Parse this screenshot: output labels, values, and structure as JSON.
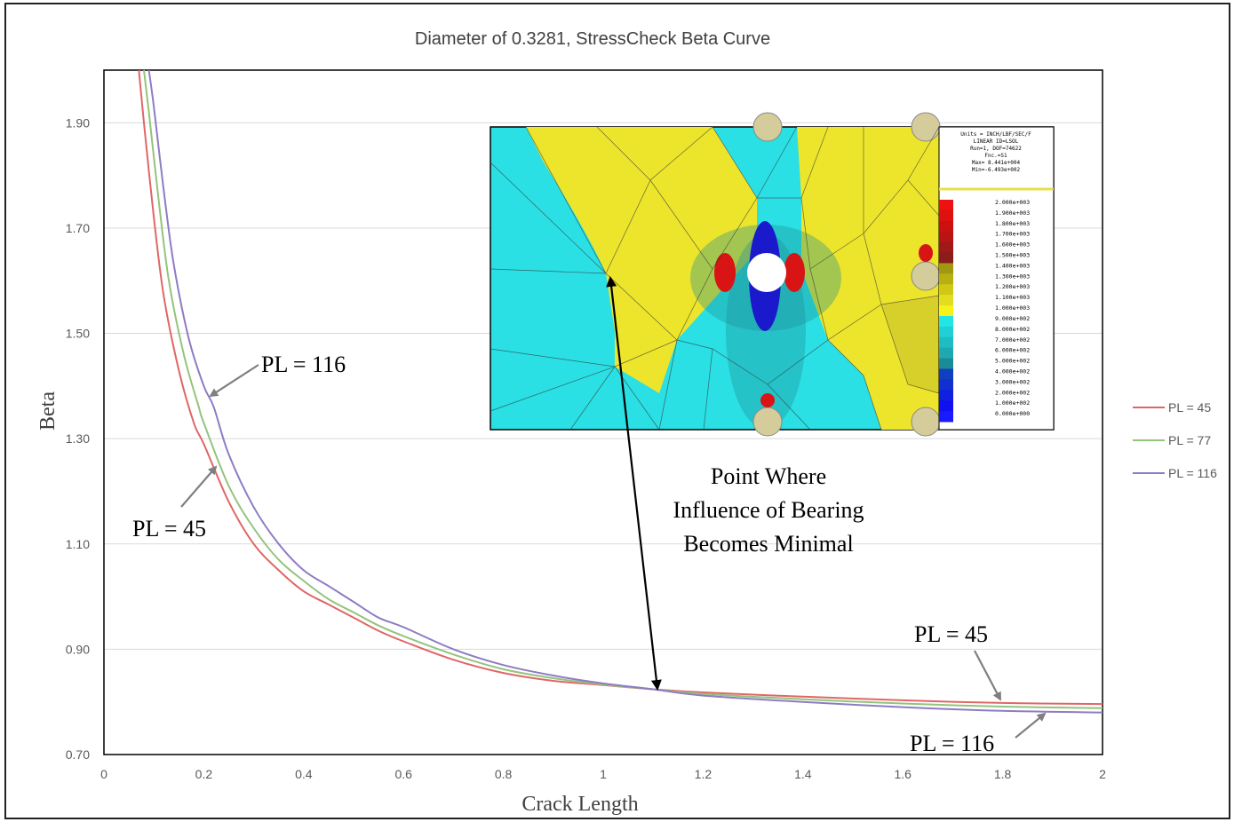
{
  "chart_data": {
    "type": "line",
    "title": "Diameter of 0.3281, StressCheck Beta Curve",
    "xlabel": "Crack Length",
    "ylabel": "Beta",
    "xlim": [
      0,
      2
    ],
    "ylim": [
      0.7,
      2.0
    ],
    "x_ticks": [
      "0",
      "0.2",
      "0.4",
      "0.6",
      "0.8",
      "1",
      "1.2",
      "1.4",
      "1.6",
      "1.8",
      "2"
    ],
    "y_ticks": [
      "0.70",
      "0.90",
      "1.10",
      "1.30",
      "1.50",
      "1.70",
      "1.90"
    ],
    "y_tick_values": [
      0.7,
      0.9,
      1.1,
      1.3,
      1.5,
      1.7,
      1.9
    ],
    "grid": "horizontal",
    "legend_position": "right",
    "series": [
      {
        "name": "PL = 45",
        "color": "#e06666",
        "points": [
          [
            0.07,
            2.0
          ],
          [
            0.08,
            1.9
          ],
          [
            0.1,
            1.72
          ],
          [
            0.12,
            1.57
          ],
          [
            0.15,
            1.43
          ],
          [
            0.18,
            1.33
          ],
          [
            0.2,
            1.29
          ],
          [
            0.25,
            1.18
          ],
          [
            0.3,
            1.1
          ],
          [
            0.35,
            1.05
          ],
          [
            0.4,
            1.01
          ],
          [
            0.45,
            0.985
          ],
          [
            0.5,
            0.96
          ],
          [
            0.55,
            0.935
          ],
          [
            0.6,
            0.915
          ],
          [
            0.7,
            0.88
          ],
          [
            0.8,
            0.855
          ],
          [
            0.9,
            0.84
          ],
          [
            1.0,
            0.832
          ],
          [
            1.1,
            0.824
          ],
          [
            1.2,
            0.818
          ],
          [
            1.4,
            0.81
          ],
          [
            1.6,
            0.803
          ],
          [
            1.8,
            0.798
          ],
          [
            2.0,
            0.796
          ]
        ]
      },
      {
        "name": "PL = 77",
        "color": "#93c47d",
        "points": [
          [
            0.08,
            2.0
          ],
          [
            0.09,
            1.92
          ],
          [
            0.11,
            1.75
          ],
          [
            0.13,
            1.6
          ],
          [
            0.16,
            1.46
          ],
          [
            0.19,
            1.36
          ],
          [
            0.2,
            1.33
          ],
          [
            0.25,
            1.21
          ],
          [
            0.3,
            1.13
          ],
          [
            0.35,
            1.07
          ],
          [
            0.4,
            1.03
          ],
          [
            0.45,
            0.995
          ],
          [
            0.5,
            0.97
          ],
          [
            0.55,
            0.945
          ],
          [
            0.6,
            0.925
          ],
          [
            0.7,
            0.89
          ],
          [
            0.8,
            0.862
          ],
          [
            0.9,
            0.845
          ],
          [
            1.0,
            0.833
          ],
          [
            1.1,
            0.824
          ],
          [
            1.2,
            0.815
          ],
          [
            1.4,
            0.805
          ],
          [
            1.6,
            0.797
          ],
          [
            1.8,
            0.791
          ],
          [
            2.0,
            0.788
          ]
        ]
      },
      {
        "name": "PL = 116",
        "color": "#8e7cc3",
        "points": [
          [
            0.09,
            2.0
          ],
          [
            0.1,
            1.93
          ],
          [
            0.12,
            1.77
          ],
          [
            0.14,
            1.63
          ],
          [
            0.17,
            1.49
          ],
          [
            0.2,
            1.4
          ],
          [
            0.22,
            1.36
          ],
          [
            0.25,
            1.27
          ],
          [
            0.3,
            1.17
          ],
          [
            0.35,
            1.1
          ],
          [
            0.4,
            1.05
          ],
          [
            0.45,
            1.02
          ],
          [
            0.5,
            0.99
          ],
          [
            0.55,
            0.96
          ],
          [
            0.6,
            0.942
          ],
          [
            0.7,
            0.9
          ],
          [
            0.8,
            0.87
          ],
          [
            0.9,
            0.85
          ],
          [
            1.0,
            0.835
          ],
          [
            1.1,
            0.824
          ],
          [
            1.2,
            0.812
          ],
          [
            1.4,
            0.8
          ],
          [
            1.6,
            0.79
          ],
          [
            1.8,
            0.783
          ],
          [
            2.0,
            0.78
          ]
        ]
      }
    ],
    "annotations": {
      "pl116_upper": "PL = 116",
      "pl45_upper": "PL = 45",
      "pl45_lower": "PL = 45",
      "pl116_lower": "PL = 116",
      "point_note": [
        "Point Where",
        "Influence of Bearing",
        "Becomes Minimal"
      ]
    }
  },
  "inset": {
    "legend_header": [
      "Units = INCH/LBF/SEC/F",
      "LINEAR ID=LSOL",
      "Run=1, DOF=74622",
      "Fnc.=S1",
      "Max= 8.441e+004",
      "Min=-6.493e+002"
    ],
    "legend_values": [
      "2.000e+003",
      "1.900e+003",
      "1.800e+003",
      "1.700e+003",
      "1.600e+003",
      "1.500e+003",
      "1.400e+003",
      "1.300e+003",
      "1.200e+003",
      "1.100e+003",
      "1.000e+003",
      "9.000e+002",
      "8.000e+002",
      "7.000e+002",
      "6.000e+002",
      "5.000e+002",
      "4.000e+002",
      "3.000e+002",
      "2.000e+002",
      "1.000e+002",
      "0.000e+000"
    ],
    "legend_colors": [
      "#ee1111",
      "#e01010",
      "#cc1010",
      "#b81414",
      "#a01818",
      "#8a1c1c",
      "#a09810",
      "#b8b010",
      "#d0c814",
      "#e4dc20",
      "#f6f21c",
      "#22e6e6",
      "#20d0d4",
      "#1fbcc2",
      "#1ea8b0",
      "#1a8c98",
      "#1040c0",
      "#1030d0",
      "#1020e0",
      "#1010f0",
      "#1a1aff"
    ]
  }
}
